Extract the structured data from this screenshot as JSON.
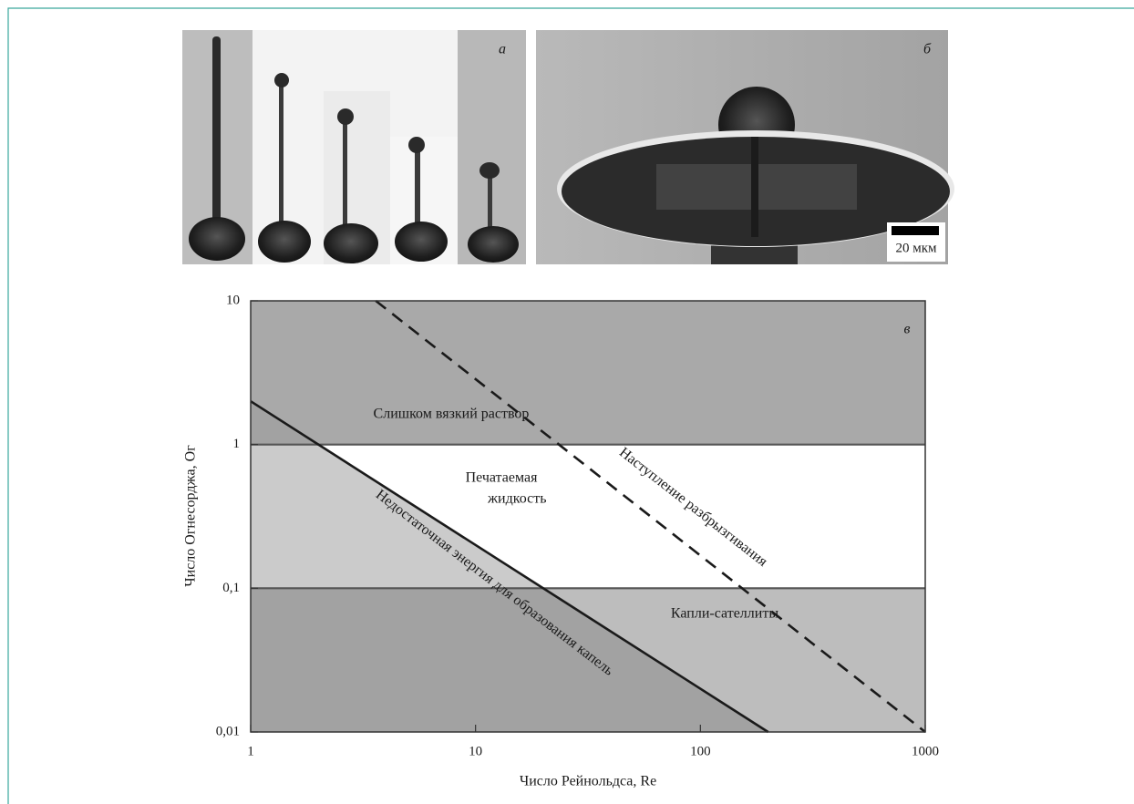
{
  "panels": {
    "a": {
      "label": "а"
    },
    "b": {
      "label": "б",
      "scale_bar": "20 мкм"
    }
  },
  "chart_data": {
    "type": "phase-diagram",
    "panel_label": "в",
    "xlabel": "Число Рейнольдса, Re",
    "ylabel": "Число Огнесорджа, Ог",
    "xscale": "log",
    "yscale": "log",
    "xlim": [
      1,
      1000
    ],
    "ylim": [
      0.01,
      10
    ],
    "xticks": [
      1,
      10,
      100,
      1000
    ],
    "yticks": [
      {
        "value": 0.01,
        "label": "0,01"
      },
      {
        "value": 0.1,
        "label": "0,1"
      },
      1,
      10
    ],
    "hlines": [
      1,
      0.1
    ],
    "hline_color": "#555555",
    "lines": [
      {
        "x": [
          1,
          200
        ],
        "y": [
          2,
          0.01
        ],
        "style": "solid",
        "color": "#1a1a1a"
      },
      {
        "x": [
          3.6,
          1000
        ],
        "y": [
          10,
          0.01
        ],
        "style": "dashed",
        "color": "#1a1a1a"
      }
    ],
    "annotations": {
      "viscous": "Слишком вязкий раствор",
      "printable": [
        "Печатаемая",
        "жидкость"
      ],
      "splashing": "Наступление разбрызгивания",
      "insufficient": "Недостаточная энергия для образования капель",
      "satellites": "Капли-сателлиты"
    }
  }
}
